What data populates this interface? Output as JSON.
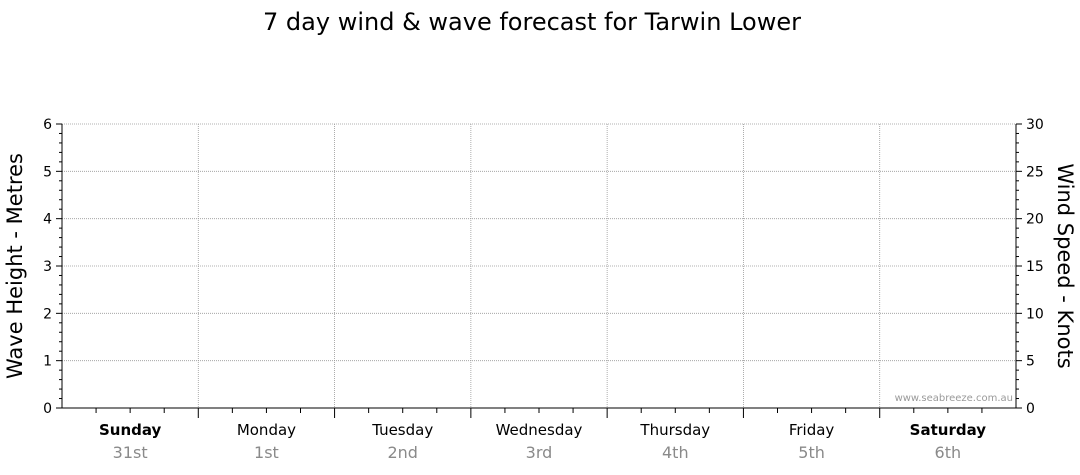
{
  "chart_data": {
    "type": "line",
    "title": "7 day wind & wave forecast for Tarwin Lower",
    "y_left_label": "Wave Height - Metres",
    "y_right_label": "Wind Speed - Knots",
    "y_left_range": [
      0,
      6
    ],
    "y_left_ticks": [
      "0",
      "1",
      "2",
      "3",
      "4",
      "5",
      "6"
    ],
    "y_right_range": [
      0,
      30
    ],
    "y_right_ticks": [
      "0",
      "5",
      "10",
      "15",
      "20",
      "25",
      "30"
    ],
    "days": [
      {
        "day": "Sunday",
        "date": "31st",
        "bold": true
      },
      {
        "day": "Monday",
        "date": "1st",
        "bold": false
      },
      {
        "day": "Tuesday",
        "date": "2nd",
        "bold": false
      },
      {
        "day": "Wednesday",
        "date": "3rd",
        "bold": false
      },
      {
        "day": "Thursday",
        "date": "4th",
        "bold": false
      },
      {
        "day": "Friday",
        "date": "5th",
        "bold": false
      },
      {
        "day": "Saturday",
        "date": "6th",
        "bold": true
      }
    ],
    "grid": true,
    "series": [],
    "watermark": "www.seabreeze.com.au"
  }
}
